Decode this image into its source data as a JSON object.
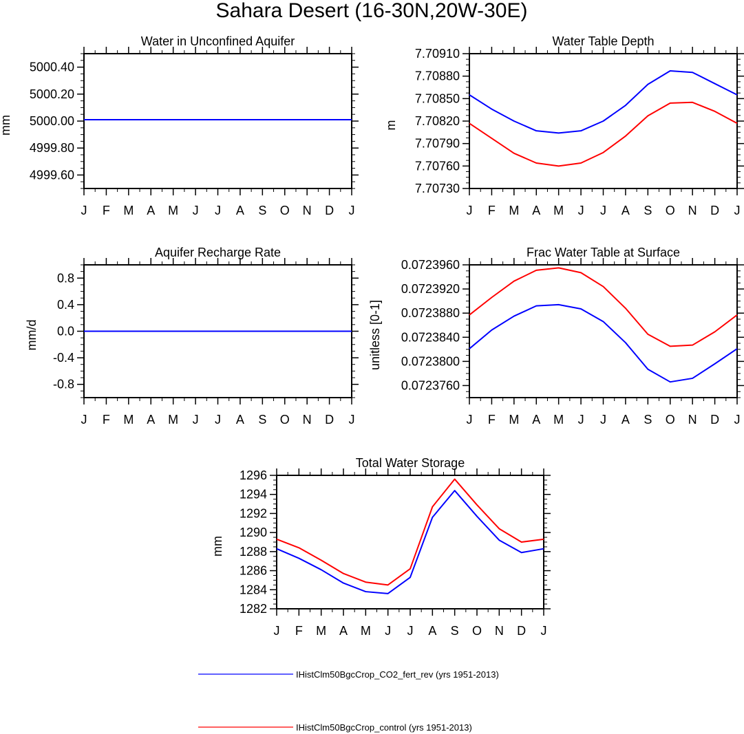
{
  "page_title": "Sahara Desert (16-30N,20W-30E)",
  "months": [
    "J",
    "F",
    "M",
    "A",
    "M",
    "J",
    "J",
    "A",
    "S",
    "O",
    "N",
    "D",
    "J"
  ],
  "colors": {
    "series_a": "#0000ff",
    "series_b": "#ff0000"
  },
  "legend": {
    "items": [
      "IHistClm50BgcCrop_CO2_fert_rev (yrs 1951-2013)",
      "IHistClm50BgcCrop_control (yrs 1951-2013)"
    ]
  },
  "chart_data": [
    {
      "type": "line",
      "title": "Water in Unconfined Aquifer",
      "ylabel": "mm",
      "xlabel": "",
      "x": [
        "J",
        "F",
        "M",
        "A",
        "M",
        "J",
        "J",
        "A",
        "S",
        "O",
        "N",
        "D",
        "J"
      ],
      "ylim": [
        4999.5,
        5000.5
      ],
      "yticks": [
        4999.6,
        4999.8,
        5000.0,
        5000.2,
        5000.4
      ],
      "ytick_labels": [
        "4999.60",
        "4999.80",
        "5000.00",
        "5000.20",
        "5000.40"
      ],
      "series": [
        {
          "name": "IHistClm50BgcCrop_CO2_fert_rev (yrs 1951-2013)",
          "color": "#0000ff",
          "values": [
            5000.01,
            5000.01,
            5000.01,
            5000.01,
            5000.01,
            5000.01,
            5000.01,
            5000.01,
            5000.01,
            5000.01,
            5000.01,
            5000.01,
            5000.01
          ]
        },
        {
          "name": "IHistClm50BgcCrop_control (yrs 1951-2013)",
          "color": "#ff0000",
          "values": [
            5000.01,
            5000.01,
            5000.01,
            5000.01,
            5000.01,
            5000.01,
            5000.01,
            5000.01,
            5000.01,
            5000.01,
            5000.01,
            5000.01,
            5000.01
          ]
        }
      ]
    },
    {
      "type": "line",
      "title": "Water Table Depth",
      "ylabel": "m",
      "xlabel": "",
      "x": [
        "J",
        "F",
        "M",
        "A",
        "M",
        "J",
        "J",
        "A",
        "S",
        "O",
        "N",
        "D",
        "J"
      ],
      "ylim": [
        7.7073,
        7.7091
      ],
      "yticks": [
        7.7073,
        7.7076,
        7.7079,
        7.7082,
        7.7085,
        7.7088,
        7.7091
      ],
      "ytick_labels": [
        "7.70730",
        "7.70760",
        "7.70790",
        "7.70820",
        "7.70850",
        "7.70880",
        "7.70910"
      ],
      "series": [
        {
          "name": "IHistClm50BgcCrop_CO2_fert_rev (yrs 1951-2013)",
          "color": "#0000ff",
          "values": [
            7.70855,
            7.70836,
            7.7082,
            7.70807,
            7.70804,
            7.70807,
            7.7082,
            7.70841,
            7.70869,
            7.70887,
            7.70885,
            7.7087,
            7.70855
          ]
        },
        {
          "name": "IHistClm50BgcCrop_control (yrs 1951-2013)",
          "color": "#ff0000",
          "values": [
            7.70817,
            7.70797,
            7.70777,
            7.70764,
            7.7076,
            7.70764,
            7.70778,
            7.708,
            7.70827,
            7.70844,
            7.70845,
            7.70833,
            7.70817
          ]
        }
      ]
    },
    {
      "type": "line",
      "title": "Aquifer Recharge Rate",
      "ylabel": "mm/d",
      "xlabel": "",
      "x": [
        "J",
        "F",
        "M",
        "A",
        "M",
        "J",
        "J",
        "A",
        "S",
        "O",
        "N",
        "D",
        "J"
      ],
      "ylim": [
        -1.0,
        1.0
      ],
      "yticks": [
        -0.8,
        -0.4,
        0.0,
        0.4,
        0.8
      ],
      "ytick_labels": [
        "-0.8",
        "-0.4",
        "0.0",
        "0.4",
        "0.8"
      ],
      "series": [
        {
          "name": "IHistClm50BgcCrop_CO2_fert_rev (yrs 1951-2013)",
          "color": "#0000ff",
          "values": [
            0,
            0,
            0,
            0,
            0,
            0,
            0,
            0,
            0,
            0,
            0,
            0,
            0
          ]
        },
        {
          "name": "IHistClm50BgcCrop_control (yrs 1951-2013)",
          "color": "#ff0000",
          "values": [
            0,
            0,
            0,
            0,
            0,
            0,
            0,
            0,
            0,
            0,
            0,
            0,
            0
          ]
        }
      ]
    },
    {
      "type": "line",
      "title": "Frac Water Table at Surface",
      "ylabel": "unitless [0-1]",
      "xlabel": "",
      "x": [
        "J",
        "F",
        "M",
        "A",
        "M",
        "J",
        "J",
        "A",
        "S",
        "O",
        "N",
        "D",
        "J"
      ],
      "ylim": [
        0.072374,
        0.072396
      ],
      "yticks": [
        0.072376,
        0.07238,
        0.072384,
        0.072388,
        0.072392,
        0.072396
      ],
      "ytick_labels": [
        "0.0723760",
        "0.0723800",
        "0.0723840",
        "0.0723880",
        "0.0723920",
        "0.0723960"
      ],
      "series": [
        {
          "name": "IHistClm50BgcCrop_CO2_fert_rev (yrs 1951-2013)",
          "color": "#0000ff",
          "values": [
            0.0723821,
            0.0723852,
            0.0723875,
            0.0723892,
            0.0723894,
            0.0723887,
            0.0723866,
            0.0723831,
            0.0723787,
            0.0723766,
            0.0723772,
            0.0723796,
            0.0723821
          ]
        },
        {
          "name": "IHistClm50BgcCrop_control (yrs 1951-2013)",
          "color": "#ff0000",
          "values": [
            0.0723877,
            0.0723906,
            0.0723933,
            0.0723951,
            0.0723955,
            0.0723947,
            0.0723924,
            0.0723888,
            0.0723845,
            0.0723825,
            0.0723827,
            0.0723849,
            0.0723877
          ]
        }
      ]
    },
    {
      "type": "line",
      "title": "Total Water Storage",
      "ylabel": "mm",
      "xlabel": "",
      "x": [
        "J",
        "F",
        "M",
        "A",
        "M",
        "J",
        "J",
        "A",
        "S",
        "O",
        "N",
        "D",
        "J"
      ],
      "ylim": [
        1282,
        1296
      ],
      "yticks": [
        1282,
        1284,
        1286,
        1288,
        1290,
        1292,
        1294,
        1296
      ],
      "ytick_labels": [
        "1282",
        "1284",
        "1286",
        "1288",
        "1290",
        "1292",
        "1294",
        "1296"
      ],
      "series": [
        {
          "name": "IHistClm50BgcCrop_CO2_fert_rev (yrs 1951-2013)",
          "color": "#0000ff",
          "values": [
            1288.3,
            1287.3,
            1286.1,
            1284.7,
            1283.8,
            1283.6,
            1285.3,
            1291.6,
            1294.4,
            1291.7,
            1289.2,
            1287.9,
            1288.3
          ]
        },
        {
          "name": "IHistClm50BgcCrop_control (yrs 1951-2013)",
          "color": "#ff0000",
          "values": [
            1289.3,
            1288.4,
            1287.1,
            1285.7,
            1284.8,
            1284.5,
            1286.2,
            1292.7,
            1295.6,
            1292.9,
            1290.4,
            1289.0,
            1289.3
          ]
        }
      ]
    }
  ]
}
